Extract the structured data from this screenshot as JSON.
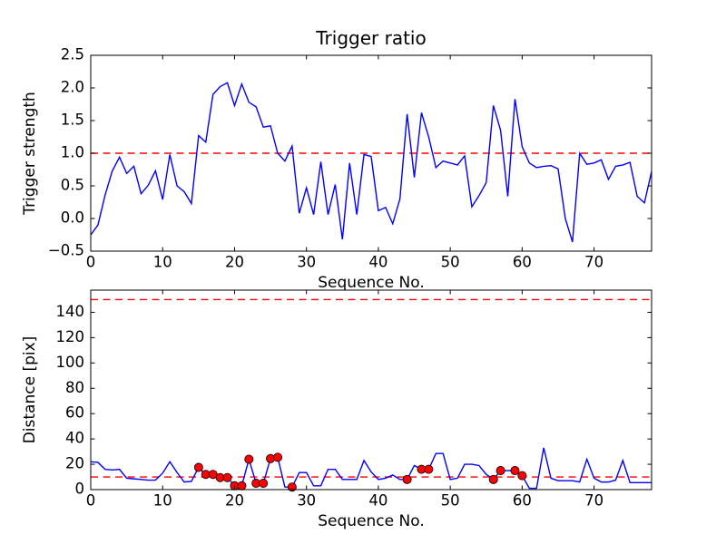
{
  "figure": {
    "background": "#ffffff",
    "title": "Trigger ratio"
  },
  "colors": {
    "series_line": "#0000ff",
    "threshold_line": "#ff0000",
    "marker_fill": "#ff0000",
    "marker_edge": "#000000",
    "axis": "#000000",
    "text": "#000000"
  },
  "chart_data": [
    {
      "type": "line",
      "title": "Trigger ratio",
      "xlabel": "Sequence No.",
      "ylabel": "Trigger strength",
      "xlim": [
        0,
        78
      ],
      "ylim": [
        -0.5,
        2.5
      ],
      "grid": false,
      "legend": "none",
      "xticks": [
        0,
        10,
        20,
        30,
        40,
        50,
        60,
        70
      ],
      "xtick_labels": [
        "0",
        "10",
        "20",
        "30",
        "40",
        "50",
        "60",
        "70"
      ],
      "yticks": [
        2.5,
        2.0,
        1.5,
        1.0,
        0.5,
        0.0,
        -0.5
      ],
      "ytick_labels": [
        "2.5",
        "2.0",
        "1.5",
        "1.0",
        "0.5",
        "0.0",
        "−0.5"
      ],
      "thresholds": [
        1.0
      ],
      "x": [
        0,
        1,
        2,
        3,
        4,
        5,
        6,
        7,
        8,
        9,
        10,
        11,
        12,
        13,
        14,
        15,
        16,
        17,
        18,
        19,
        20,
        21,
        22,
        23,
        24,
        25,
        26,
        27,
        28,
        29,
        30,
        31,
        32,
        33,
        34,
        35,
        36,
        37,
        38,
        39,
        40,
        41,
        42,
        43,
        44,
        45,
        46,
        47,
        48,
        49,
        50,
        51,
        52,
        53,
        54,
        55,
        56,
        57,
        58,
        59,
        60,
        61,
        62,
        63,
        64,
        65,
        66,
        67,
        68,
        69,
        70,
        71,
        72,
        73,
        74,
        75,
        76,
        77,
        78
      ],
      "values": [
        -0.25,
        -0.1,
        0.36,
        0.73,
        0.94,
        0.69,
        0.8,
        0.38,
        0.51,
        0.73,
        0.29,
        0.98,
        0.5,
        0.41,
        0.23,
        1.27,
        1.17,
        1.9,
        2.02,
        2.08,
        1.73,
        2.06,
        1.78,
        1.71,
        1.4,
        1.42,
        1.0,
        0.88,
        1.11,
        0.08,
        0.47,
        0.06,
        0.87,
        0.06,
        0.52,
        -0.32,
        0.85,
        0.06,
        0.98,
        0.95,
        0.12,
        0.17,
        -0.08,
        0.3,
        1.6,
        0.63,
        1.62,
        1.25,
        0.78,
        0.88,
        0.85,
        0.82,
        0.96,
        0.18,
        0.35,
        0.55,
        1.73,
        1.35,
        0.34,
        1.83,
        1.1,
        0.85,
        0.78,
        0.8,
        0.81,
        0.76,
        0.0,
        -0.36,
        1.0,
        0.83,
        0.85,
        0.9,
        0.6,
        0.8,
        0.82,
        0.86,
        0.34,
        0.24,
        0.72
      ]
    },
    {
      "type": "line",
      "title": "",
      "xlabel": "Sequence No.",
      "ylabel": "Distance [pix]",
      "xlim": [
        0,
        78
      ],
      "ylim": [
        0,
        157.5
      ],
      "grid": false,
      "legend": "none",
      "xticks": [
        0,
        10,
        20,
        30,
        40,
        50,
        60,
        70
      ],
      "xtick_labels": [
        "0",
        "10",
        "20",
        "30",
        "40",
        "50",
        "60",
        "70"
      ],
      "yticks": [
        0,
        20,
        40,
        60,
        80,
        100,
        120,
        140
      ],
      "ytick_labels": [
        "0",
        "20",
        "40",
        "60",
        "80",
        "100",
        "120",
        "140"
      ],
      "thresholds": [
        150,
        10
      ],
      "x": [
        0,
        1,
        2,
        3,
        4,
        5,
        6,
        7,
        8,
        9,
        10,
        11,
        12,
        13,
        14,
        15,
        16,
        17,
        18,
        19,
        20,
        21,
        22,
        23,
        24,
        25,
        26,
        27,
        28,
        29,
        30,
        31,
        32,
        33,
        34,
        35,
        36,
        37,
        38,
        39,
        40,
        41,
        42,
        43,
        44,
        45,
        46,
        47,
        48,
        49,
        50,
        51,
        52,
        53,
        54,
        55,
        56,
        57,
        58,
        59,
        60,
        61,
        62,
        63,
        64,
        65,
        66,
        67,
        68,
        69,
        70,
        71,
        72,
        73,
        74,
        75,
        76,
        77,
        78
      ],
      "values": [
        22,
        21.5,
        16,
        15.5,
        16,
        9,
        8.5,
        8,
        7.5,
        7.5,
        13,
        22,
        13.5,
        6,
        6.5,
        17.5,
        12,
        12,
        9.5,
        9.5,
        3,
        3,
        24,
        5,
        5,
        24.5,
        25.5,
        2,
        2,
        13.5,
        13.5,
        3,
        3,
        16,
        16,
        8,
        8,
        8,
        23,
        14,
        8,
        9,
        11.5,
        8,
        8,
        19,
        16,
        16,
        28.5,
        28.5,
        8,
        9,
        20,
        20,
        19,
        12,
        8,
        15,
        15,
        15,
        11,
        1,
        1,
        33,
        9,
        7,
        7,
        7,
        6,
        24,
        9,
        6,
        6,
        7.5,
        23,
        5.5,
        5.5,
        5.5,
        5.5
      ],
      "marker_x": [
        15,
        16,
        17,
        18,
        19,
        20,
        21,
        22,
        23,
        24,
        25,
        26,
        28,
        44,
        46,
        47,
        56,
        57,
        59,
        60
      ],
      "marker_y": [
        17.5,
        12,
        12,
        9.5,
        9.5,
        3,
        3,
        24,
        5,
        5,
        24.5,
        25.5,
        2,
        8,
        16,
        16,
        8,
        15,
        15,
        11
      ]
    }
  ]
}
